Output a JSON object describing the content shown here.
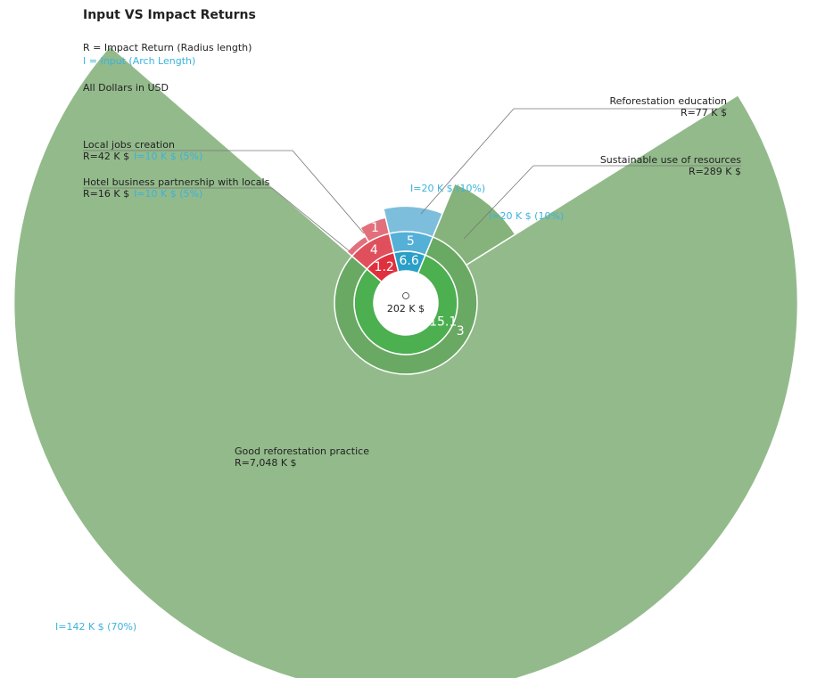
{
  "chart_data": {
    "type": "polar_area",
    "title": "Input VS Impact Returns",
    "legend_radius": "R = Impact Return (Radius length)",
    "legend_arc": "I = Input (Arch Length)",
    "currency_note": "All Dollars in USD",
    "center_label": "202 K $",
    "groups": [
      {
        "rings": [
          {
            "value": 1.2,
            "color": "#e0303e"
          },
          {
            "value": 4,
            "color": "#e0505c"
          },
          {
            "value": 1
          }
        ],
        "segments": [
          {
            "name": "Hotel business partnership with locals",
            "value": 16,
            "value_label": "R=16  K $",
            "input": 10,
            "input_label": "I=10  K $ (5%)",
            "color": "#e2707c"
          },
          {
            "name": "Local jobs creation",
            "value": 42,
            "value_label": "R=42 K $",
            "input": 10,
            "input_label": "I=10  K $ (5%)",
            "color": "#e2707c"
          }
        ]
      },
      {
        "rings": [
          {
            "value": 6.6,
            "color": "#2a9fc7"
          },
          {
            "value": 5,
            "color": "#55b0d8"
          }
        ],
        "segments": [
          {
            "name": "Reforestation  education",
            "value": 77,
            "value_label": "R=77 K $",
            "input": 20,
            "input_label": "I=20  K $  (10%)",
            "color": "#7dbedc"
          }
        ]
      },
      {
        "rings": [
          {
            "value": 15.1,
            "color": "#4caf50"
          },
          {
            "value": 3,
            "color": "#6aa964"
          }
        ],
        "segments": [
          {
            "name": "Sustainable use of resources",
            "value": 289,
            "value_label": "R=289 K $",
            "input": 20,
            "input_label": "I=20 K $  (10%)",
            "color": "#86b37c"
          },
          {
            "name": "Good reforestation practice",
            "value": 7048,
            "value_label": "R=7,048  K $",
            "input": 142,
            "input_label": "I=142  K $  (70%)",
            "color": "#93ba8b"
          }
        ]
      }
    ]
  }
}
